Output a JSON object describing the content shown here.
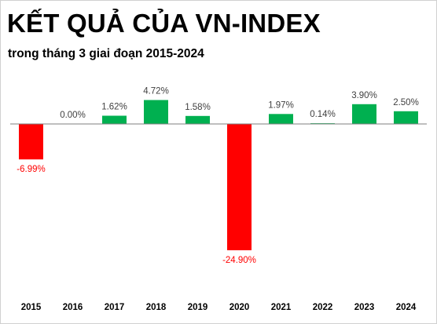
{
  "title": "KẾT QUẢ CỦA VN-INDEX",
  "subtitle": "trong tháng 3 giai đoạn 2015-2024",
  "colors": {
    "positive": "#00B050",
    "negative": "#FF0000",
    "axis": "#7f7f7f",
    "label": "#404040"
  },
  "chart_data": {
    "type": "bar",
    "categories": [
      "2015",
      "2016",
      "2017",
      "2018",
      "2019",
      "2020",
      "2021",
      "2022",
      "2023",
      "2024"
    ],
    "values": [
      -6.99,
      0.0,
      1.62,
      4.72,
      1.58,
      -24.9,
      1.97,
      0.14,
      3.9,
      2.5
    ],
    "data_labels": [
      "-6.99%",
      "0.00%",
      "1.62%",
      "4.72%",
      "1.58%",
      "-24.90%",
      "1.97%",
      "0.14%",
      "3.90%",
      "2.50%"
    ],
    "title": "KẾT QUẢ CỦA VN-INDEX",
    "subtitle": "trong tháng 3 giai đoạn 2015-2024",
    "xlabel": "",
    "ylabel": "",
    "ylim": [
      -25,
      5
    ],
    "grid": false,
    "legend": "none"
  }
}
